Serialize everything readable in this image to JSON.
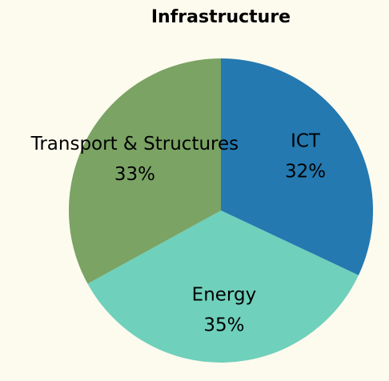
{
  "chart_data": {
    "type": "pie",
    "title": "Infrastructure",
    "categories": [
      "ICT",
      "Energy",
      "Transport & Structures"
    ],
    "values": [
      32,
      35,
      33
    ],
    "value_labels": [
      "32%",
      "35%",
      "33%"
    ],
    "colors": [
      "#2479b0",
      "#6fd0bb",
      "#7aa364"
    ]
  }
}
